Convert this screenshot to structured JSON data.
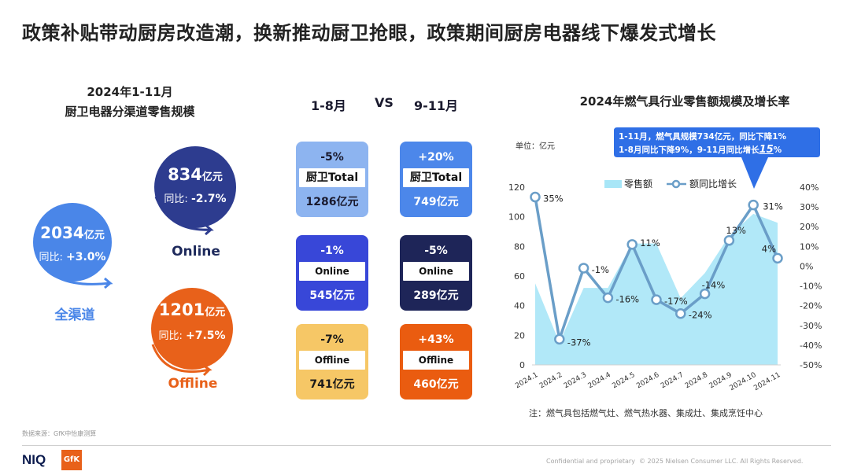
{
  "title": "政策补贴带动厨房改造潮，换新推动厨卫抢眼，政策期间厨房电器线下爆发式增长",
  "left": {
    "subtitle1": "2024年1-11月",
    "subtitle2": "厨卫电器分渠道零售规模",
    "total": {
      "num": "2034",
      "unit": "亿元",
      "yoy_label": "同比:",
      "yoy": "+3.0%",
      "label": "全渠道"
    },
    "online": {
      "num": "834",
      "unit": "亿元",
      "yoy_label": "同比:",
      "yoy": "-2.7%",
      "label": "Online"
    },
    "offline": {
      "num": "1201",
      "unit": "亿元",
      "yoy_label": "同比:",
      "yoy": "+7.5%",
      "label": "Offline"
    }
  },
  "middle": {
    "header_left": "1-8月",
    "header_vs": "VS",
    "header_right": "9-11月",
    "rows": [
      {
        "left": {
          "pct": "-5%",
          "name": "厨卫Total",
          "value": "1286亿元"
        },
        "right": {
          "pct": "+20%",
          "name": "厨卫Total",
          "value": "749亿元"
        }
      },
      {
        "left": {
          "pct": "-1%",
          "name": "Online",
          "value": "545亿元"
        },
        "right": {
          "pct": "-5%",
          "name": "Online",
          "value": "289亿元"
        }
      },
      {
        "left": {
          "pct": "-7%",
          "name": "Offline",
          "value": "741亿元"
        },
        "right": {
          "pct": "+43%",
          "name": "Offline",
          "value": "460亿元"
        }
      }
    ]
  },
  "colors": {
    "blue": "#4a86e8",
    "deep_blue": "#2d3c8f",
    "orange": "#e8611a",
    "card_lblue": "#8db4f0",
    "card_blue": "#4c87ea",
    "card_royal": "#3847d8",
    "card_navy": "#1e2558",
    "card_yellow": "#f6c766",
    "card_orange": "#ea5c10",
    "area": "#a8e6f7",
    "line": "#6a9ec8",
    "callout": "#2f6fe6"
  },
  "chart_data": {
    "type": "area+line",
    "title": "2024年燃气具行业零售额规模及增长率",
    "unit_label": "单位：亿元",
    "callout_line1": "1-11月，燃气具规模734亿元，同比下降1%",
    "callout_line2_prefix": "1-8月同比下降9%，9-11月同比增长",
    "callout_line2_value": "15",
    "callout_line2_suffix": "%",
    "categories": [
      "2024.1",
      "2024.2",
      "2024.3",
      "2024.4",
      "2024.5",
      "2024.6",
      "2024.7",
      "2024.8",
      "2024.9",
      "2024.10",
      "2024.11"
    ],
    "series": [
      {
        "name": "零售额",
        "type": "area",
        "axis": "left",
        "values": [
          55,
          15,
          52,
          52,
          82,
          82,
          45,
          62,
          87,
          102,
          96
        ]
      },
      {
        "name": "额同比增长",
        "type": "line",
        "axis": "right",
        "values": [
          35,
          -37,
          -1,
          -16,
          11,
          -17,
          -24,
          -14,
          13,
          31,
          4
        ],
        "labels": [
          "35%",
          "-37%",
          "-1%",
          "-16%",
          "11%",
          "-17%",
          "-24%",
          "-14%",
          "13%",
          "31%",
          "4%"
        ]
      }
    ],
    "y_left": {
      "min": 0,
      "max": 120,
      "ticks": [
        "0",
        "20",
        "40",
        "60",
        "80",
        "100",
        "120"
      ]
    },
    "y_right": {
      "min": -50,
      "max": 40,
      "ticks": [
        "-50%",
        "-40%",
        "-30%",
        "-20%",
        "-10%",
        "0%",
        "10%",
        "20%",
        "30%",
        "40%"
      ]
    },
    "legend": "top-center",
    "grid": false,
    "note": "注：燃气具包括燃气灶、燃气热水器、集成灶、集成烹饪中心"
  },
  "footer": {
    "source": "数据来源：GfK中怡康测算",
    "niq": "NIQ",
    "gfk": "GfK",
    "confidential": "Confidential and proprietary",
    "copyright": "© 2025 Nielsen Consumer LLC. All Rights Reserved."
  }
}
